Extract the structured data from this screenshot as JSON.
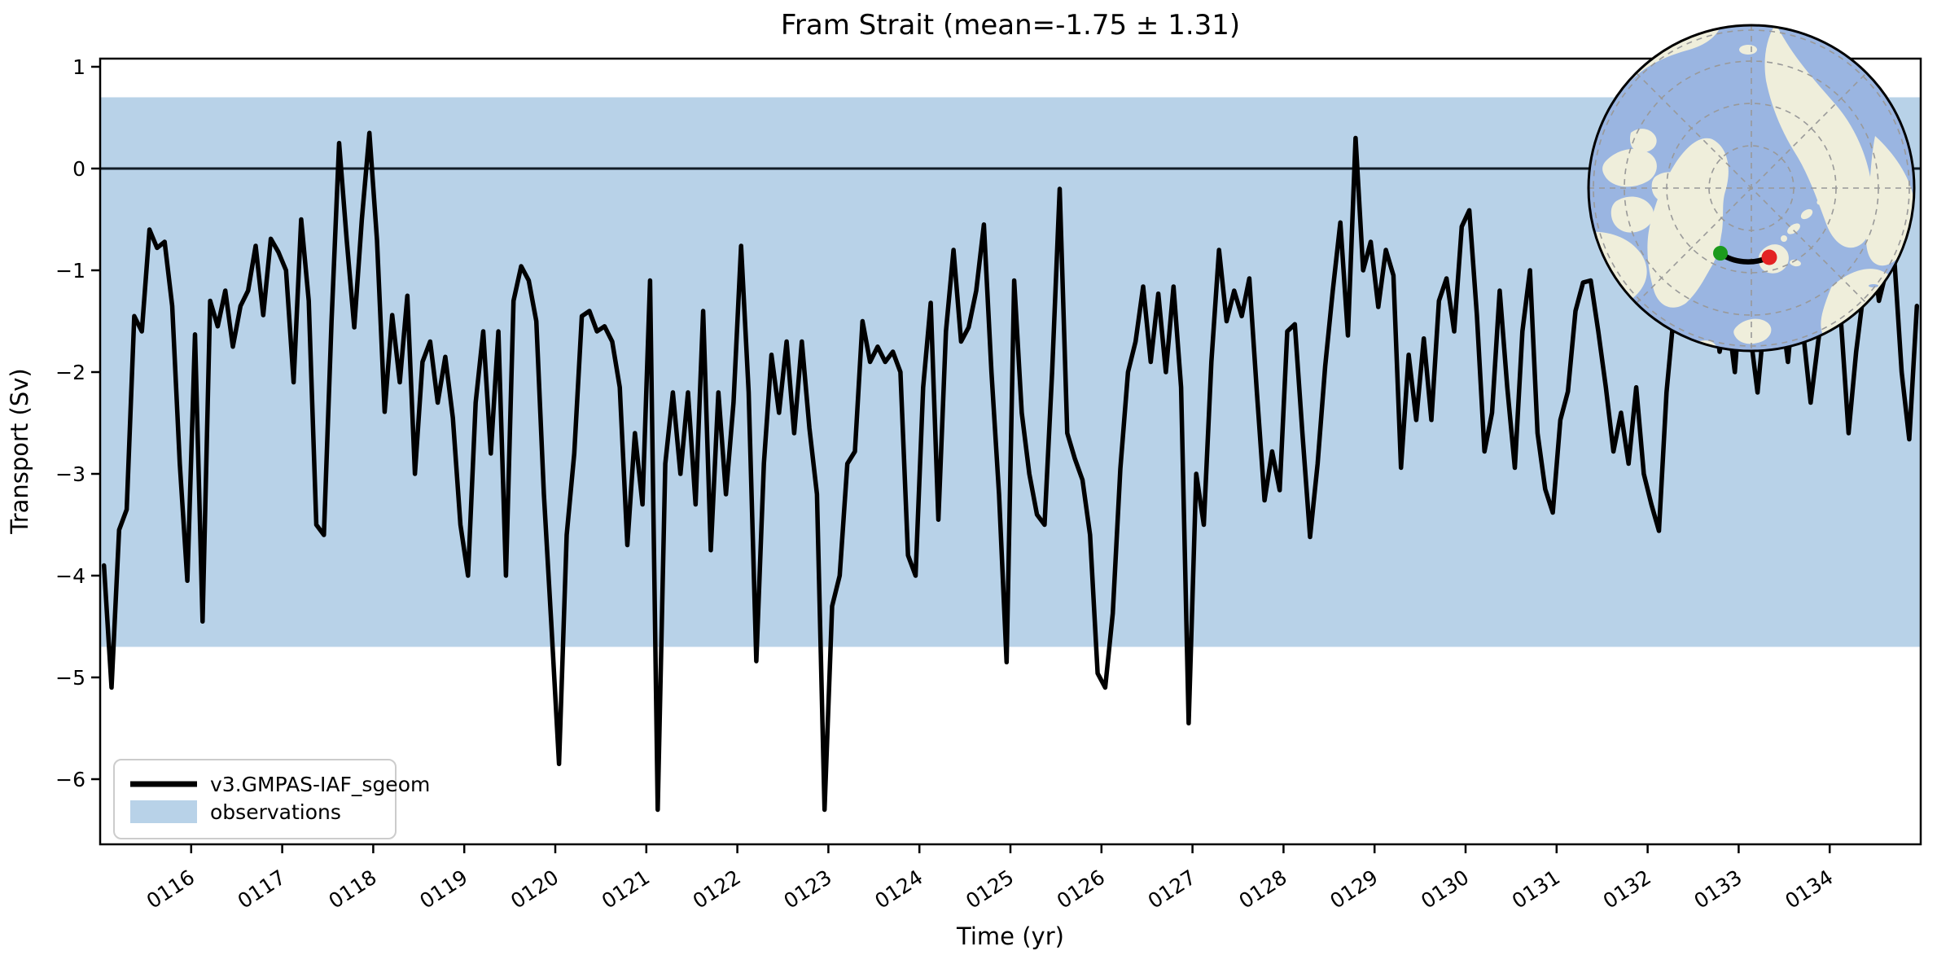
{
  "figure": {
    "title": "Fram Strait (mean=-1.75 ± 1.31)",
    "xlabel": "Time (yr)",
    "ylabel": "Transport (Sv)",
    "mean": -1.75,
    "std": 1.31
  },
  "legend": {
    "items": [
      {
        "label": "v3.GMPAS-IAF_sgeom",
        "swatch": "line",
        "color": "#000000"
      },
      {
        "label": "observations",
        "swatch": "patch",
        "color": "#b8d2e8"
      }
    ]
  },
  "colors": {
    "band": "#b8d2e8",
    "series": "#000000",
    "zero_line": "#111c26",
    "map_ocean": "#9ab5e1",
    "map_land": "#efeedb",
    "graticule": "#999999",
    "transect_start": "#1c9a1c",
    "transect_end": "#e32222"
  },
  "chart_data": {
    "type": "line",
    "title": "Fram Strait (mean=-1.75 ± 1.31)",
    "xlabel": "Time (yr)",
    "ylabel": "Transport (Sv)",
    "xlim": [
      115.0,
      135.0
    ],
    "ylim": [
      -6.64,
      1.08
    ],
    "grid": false,
    "legend_position": "lower left",
    "zero_line": 0,
    "observations_band": {
      "label": "observations",
      "min": -4.7,
      "max": 0.7
    },
    "xticks": {
      "values": [
        116,
        117,
        118,
        119,
        120,
        121,
        122,
        123,
        124,
        125,
        126,
        127,
        128,
        129,
        130,
        131,
        132,
        133,
        134
      ],
      "labels": [
        "0116",
        "0117",
        "0118",
        "0119",
        "0120",
        "0121",
        "0122",
        "0123",
        "0124",
        "0125",
        "0126",
        "0127",
        "0128",
        "0129",
        "0130",
        "0131",
        "0132",
        "0133",
        "0134"
      ]
    },
    "yticks": {
      "values": [
        1,
        0,
        -1,
        -2,
        -3,
        -4,
        -5,
        -6
      ],
      "labels": [
        "1",
        "0",
        "−1",
        "−2",
        "−3",
        "−4",
        "−5",
        "−6"
      ]
    },
    "series": [
      {
        "name": "v3.GMPAS-IAF_sgeom",
        "color": "#000000",
        "x_start": 115.0417,
        "x_step": 0.08333,
        "values": [
          -3.9,
          -5.1,
          -3.55,
          -3.35,
          -1.45,
          -1.6,
          -0.6,
          -0.78,
          -0.72,
          -1.35,
          -2.9,
          -4.05,
          -1.63,
          -4.45,
          -1.3,
          -1.55,
          -1.2,
          -1.75,
          -1.35,
          -1.2,
          -0.76,
          -1.44,
          -0.69,
          -0.82,
          -1.0,
          -2.1,
          -0.5,
          -1.3,
          -3.5,
          -3.6,
          -1.5,
          0.25,
          -0.7,
          -1.56,
          -0.5,
          0.35,
          -0.7,
          -2.39,
          -1.44,
          -2.1,
          -1.25,
          -3.0,
          -1.9,
          -1.7,
          -2.3,
          -1.85,
          -2.45,
          -3.5,
          -4.0,
          -2.3,
          -1.6,
          -2.8,
          -1.6,
          -4.0,
          -1.3,
          -0.96,
          -1.1,
          -1.5,
          -3.2,
          -4.5,
          -5.85,
          -3.6,
          -2.8,
          -1.45,
          -1.4,
          -1.6,
          -1.55,
          -1.7,
          -2.15,
          -3.7,
          -2.6,
          -3.3,
          -1.1,
          -6.3,
          -2.9,
          -2.2,
          -3.0,
          -2.2,
          -3.3,
          -1.4,
          -3.75,
          -2.2,
          -3.2,
          -2.3,
          -0.76,
          -2.2,
          -4.84,
          -2.9,
          -1.83,
          -2.4,
          -1.7,
          -2.6,
          -1.7,
          -2.55,
          -3.2,
          -6.3,
          -4.3,
          -4.0,
          -2.9,
          -2.78,
          -1.5,
          -1.9,
          -1.75,
          -1.9,
          -1.8,
          -2.0,
          -3.8,
          -4.0,
          -2.15,
          -1.32,
          -3.45,
          -1.6,
          -0.8,
          -1.7,
          -1.56,
          -1.2,
          -0.55,
          -2.0,
          -3.2,
          -4.85,
          -1.1,
          -2.4,
          -3.0,
          -3.4,
          -3.5,
          -2.0,
          -0.2,
          -2.6,
          -2.85,
          -3.06,
          -3.6,
          -4.96,
          -5.1,
          -4.37,
          -2.95,
          -2.0,
          -1.7,
          -1.16,
          -1.9,
          -1.23,
          -2.0,
          -1.16,
          -2.15,
          -5.45,
          -3.0,
          -3.5,
          -1.9,
          -0.8,
          -1.5,
          -1.2,
          -1.45,
          -1.08,
          -2.2,
          -3.26,
          -2.78,
          -3.16,
          -1.6,
          -1.53,
          -2.6,
          -3.62,
          -2.9,
          -1.94,
          -1.2,
          -0.53,
          -1.64,
          0.3,
          -1.0,
          -0.72,
          -1.36,
          -0.8,
          -1.05,
          -2.94,
          -1.83,
          -2.47,
          -1.67,
          -2.47,
          -1.3,
          -1.08,
          -1.6,
          -0.57,
          -0.41,
          -1.44,
          -2.78,
          -2.4,
          -1.2,
          -2.15,
          -2.94,
          -1.6,
          -1.0,
          -2.6,
          -3.15,
          -3.38,
          -2.47,
          -2.19,
          -1.4,
          -1.12,
          -1.1,
          -1.6,
          -2.15,
          -2.78,
          -2.4,
          -2.9,
          -2.15,
          -3.0,
          -3.3,
          -3.56,
          -2.2,
          -1.4,
          -1.0,
          -1.3,
          -0.9,
          -1.5,
          -1.2,
          -1.8,
          -1.4,
          -2.0,
          -1.0,
          -1.6,
          -2.2,
          -1.4,
          -0.8,
          -1.3,
          -1.9,
          -1.1,
          -1.6,
          -2.3,
          -1.7,
          -1.2,
          -0.9,
          -1.5,
          -2.6,
          -1.8,
          -1.2,
          -0.7,
          -1.3,
          -1.0,
          -0.85,
          -2.0,
          -2.66,
          -1.35
        ]
      }
    ]
  },
  "inset_map": {
    "name": "north-polar-stereographic-inset",
    "features": [
      "arctic-ocean",
      "greenland",
      "canadian-arctic",
      "alaska",
      "siberia",
      "scandinavia",
      "iceland",
      "svalbard"
    ],
    "transect": {
      "description": "Fram Strait section",
      "start_marker": "green-dot",
      "end_marker": "red-dot"
    }
  }
}
